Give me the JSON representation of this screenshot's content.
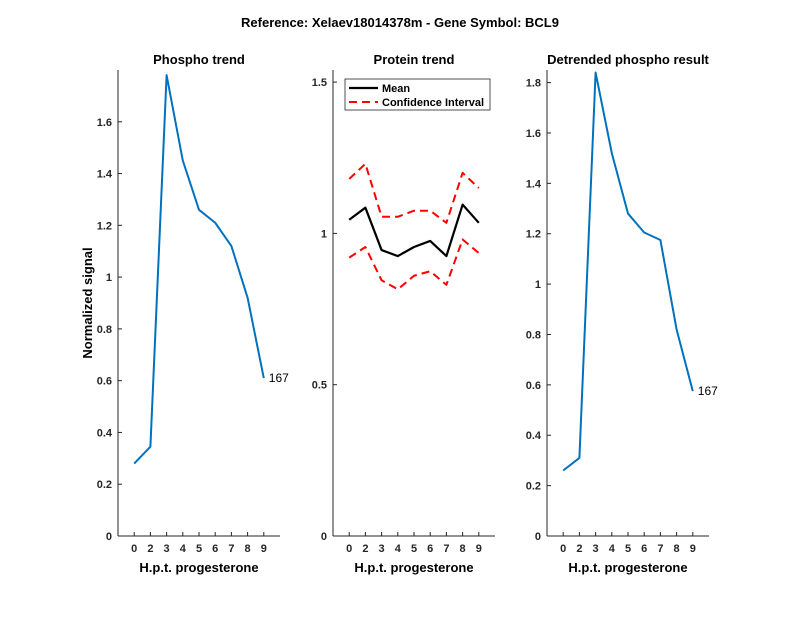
{
  "figure_title": "Reference:  Xelaev18014378m - Gene Symbol:  BCL9",
  "colors": {
    "phospho": "#0072BD",
    "mean": "#000000",
    "ci": "#FF0000",
    "axis": "#262626"
  },
  "chart_data": [
    {
      "type": "line",
      "title": "Phospho trend",
      "xlabel": "H.p.t. progesterone",
      "ylabel": "Normalized signal",
      "categories": [
        "0",
        "2",
        "3",
        "4",
        "5",
        "6",
        "7",
        "8",
        "9"
      ],
      "yticks": [
        "0",
        "0.2",
        "0.4",
        "0.6",
        "0.8",
        "1",
        "1.2",
        "1.4",
        "1.6"
      ],
      "ylim": [
        0,
        1.8
      ],
      "series": [
        {
          "name": "phospho",
          "values": [
            0.28,
            0.345,
            1.78,
            1.45,
            1.26,
            1.21,
            1.12,
            0.92,
            0.61
          ]
        }
      ],
      "end_label": "167"
    },
    {
      "type": "line",
      "title": "Protein trend",
      "xlabel": "H.p.t. progesterone",
      "ylabel": "",
      "categories": [
        "0",
        "2",
        "3",
        "4",
        "5",
        "6",
        "7",
        "8",
        "9"
      ],
      "yticks": [
        "0",
        "0.5",
        "1",
        "1.5"
      ],
      "ylim": [
        0,
        1.54
      ],
      "legend": {
        "position": "top-left",
        "entries": [
          "Mean",
          "Confidence Interval"
        ]
      },
      "series": [
        {
          "name": "Mean",
          "values": [
            1.045,
            1.085,
            0.945,
            0.925,
            0.955,
            0.975,
            0.925,
            1.095,
            1.035
          ]
        },
        {
          "name": "Confidence Interval upper",
          "values": [
            1.18,
            1.23,
            1.055,
            1.055,
            1.075,
            1.075,
            1.035,
            1.2,
            1.15
          ]
        },
        {
          "name": "Confidence Interval lower",
          "values": [
            0.92,
            0.955,
            0.845,
            0.815,
            0.86,
            0.875,
            0.83,
            0.98,
            0.935
          ]
        }
      ]
    },
    {
      "type": "line",
      "title": "Detrended phospho result",
      "xlabel": "H.p.t. progesterone",
      "ylabel": "",
      "categories": [
        "0",
        "2",
        "3",
        "4",
        "5",
        "6",
        "7",
        "8",
        "9"
      ],
      "yticks": [
        "0",
        "0.2",
        "0.4",
        "0.6",
        "0.8",
        "1",
        "1.2",
        "1.4",
        "1.6",
        "1.8"
      ],
      "ylim": [
        0,
        1.85
      ],
      "series": [
        {
          "name": "detrended",
          "values": [
            0.26,
            0.31,
            1.84,
            1.52,
            1.28,
            1.205,
            1.175,
            0.82,
            0.575
          ]
        }
      ],
      "end_label": "167"
    }
  ]
}
